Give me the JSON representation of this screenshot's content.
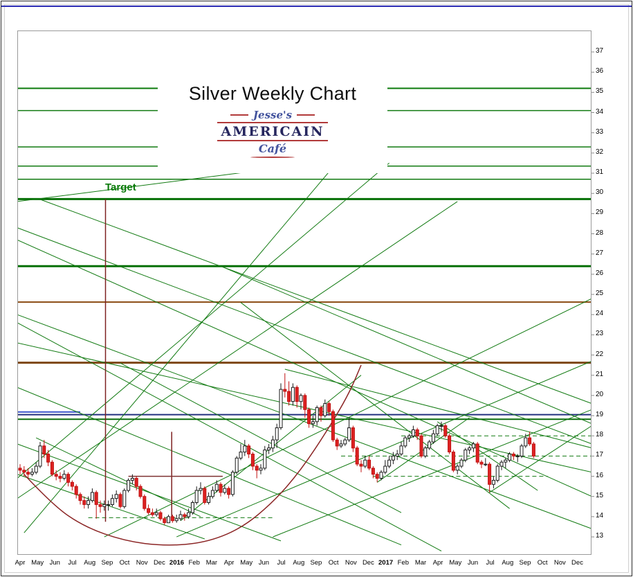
{
  "window": {
    "accent_color": "#2d2db4"
  },
  "logo": {
    "line1": "Jesse's",
    "line2": "AMERICAIN",
    "line3": "Café"
  },
  "annotations": {
    "target_label": "Target"
  },
  "chart_data": {
    "type": "candlestick",
    "title": "Silver Weekly Chart",
    "x_axis": {
      "unit": "weekly",
      "weeks_per_month": 4.34,
      "month_labels": [
        "Apr",
        "May",
        "Jun",
        "Jul",
        "Aug",
        "Sep",
        "Oct",
        "Nov",
        "Dec",
        "2016",
        "Feb",
        "Mar",
        "Apr",
        "May",
        "Jun",
        "Jul",
        "Aug",
        "Sep",
        "Oct",
        "Nov",
        "Dec",
        "2017",
        "Feb",
        "Mar",
        "Apr",
        "May",
        "Jun",
        "Jul",
        "Aug",
        "Sep",
        "Oct",
        "Nov",
        "Dec"
      ],
      "bold_labels": [
        "2016",
        "2017"
      ]
    },
    "y_axis": {
      "price_labels": [
        37,
        36,
        35,
        34,
        33,
        32,
        31,
        30,
        29,
        28,
        27,
        26,
        25,
        24,
        23,
        22,
        21,
        20,
        19,
        18,
        17,
        16,
        15,
        14,
        13
      ],
      "ylim": [
        12.1,
        38.1
      ]
    },
    "colors": {
      "up_fill": "#ffffff",
      "up_stroke": "#1a1a1a",
      "down_fill": "#dd2222",
      "down_stroke": "#c01010",
      "trend_green": "#117a11",
      "target_green": "#067006",
      "brown": "#7d4612",
      "navy": "#23307f",
      "maroon": "#8b2525"
    },
    "candles": [
      [
        16.4,
        16.6,
        16.1,
        16.3
      ],
      [
        16.3,
        16.5,
        16.0,
        16.2
      ],
      [
        16.2,
        16.4,
        15.9,
        16.1
      ],
      [
        16.1,
        16.4,
        16.0,
        16.2
      ],
      [
        16.2,
        16.7,
        16.1,
        16.5
      ],
      [
        16.5,
        17.7,
        16.4,
        17.5
      ],
      [
        17.5,
        17.8,
        16.9,
        17.1
      ],
      [
        17.1,
        17.3,
        16.5,
        16.7
      ],
      [
        16.7,
        16.8,
        16.0,
        16.1
      ],
      [
        16.1,
        16.3,
        15.8,
        16.0
      ],
      [
        16.0,
        16.2,
        15.7,
        15.9
      ],
      [
        15.9,
        16.3,
        15.8,
        16.1
      ],
      [
        16.1,
        16.2,
        15.5,
        15.7
      ],
      [
        15.7,
        15.8,
        15.3,
        15.5
      ],
      [
        15.5,
        15.6,
        14.9,
        15.1
      ],
      [
        15.1,
        15.2,
        14.6,
        14.8
      ],
      [
        14.8,
        15.0,
        14.4,
        14.6
      ],
      [
        14.6,
        15.0,
        14.4,
        14.8
      ],
      [
        14.8,
        15.4,
        14.7,
        15.2
      ],
      [
        15.2,
        15.3,
        13.9,
        14.6
      ],
      [
        14.6,
        14.8,
        14.2,
        14.5
      ],
      [
        14.5,
        14.8,
        14.3,
        14.6
      ],
      [
        14.6,
        14.8,
        14.3,
        14.6
      ],
      [
        14.6,
        15.1,
        14.5,
        14.9
      ],
      [
        14.9,
        15.3,
        14.7,
        15.1
      ],
      [
        15.1,
        15.2,
        14.4,
        14.5
      ],
      [
        14.5,
        15.4,
        14.4,
        15.3
      ],
      [
        15.3,
        15.9,
        15.2,
        15.8
      ],
      [
        15.8,
        16.1,
        15.6,
        15.9
      ],
      [
        15.9,
        16.0,
        15.3,
        15.5
      ],
      [
        15.5,
        15.6,
        14.9,
        15.0
      ],
      [
        15.0,
        15.1,
        14.3,
        14.4
      ],
      [
        14.4,
        14.6,
        14.1,
        14.2
      ],
      [
        14.2,
        14.4,
        14.0,
        14.1
      ],
      [
        14.1,
        14.4,
        14.0,
        14.2
      ],
      [
        14.2,
        14.3,
        13.8,
        13.9
      ],
      [
        13.9,
        14.0,
        13.6,
        13.7
      ],
      [
        13.7,
        14.1,
        13.7,
        14.0
      ],
      [
        14.0,
        14.1,
        13.7,
        13.8
      ],
      [
        13.8,
        14.1,
        13.7,
        13.9
      ],
      [
        13.9,
        14.3,
        13.8,
        14.1
      ],
      [
        14.1,
        14.2,
        13.8,
        14.0
      ],
      [
        14.0,
        14.4,
        13.9,
        14.2
      ],
      [
        14.2,
        14.8,
        14.1,
        14.7
      ],
      [
        14.7,
        15.5,
        14.6,
        15.3
      ],
      [
        15.3,
        15.7,
        15.1,
        15.4
      ],
      [
        15.4,
        15.5,
        14.6,
        14.7
      ],
      [
        14.7,
        15.2,
        14.6,
        15.0
      ],
      [
        15.0,
        15.5,
        14.9,
        15.3
      ],
      [
        15.3,
        15.8,
        15.2,
        15.6
      ],
      [
        15.6,
        15.7,
        15.0,
        15.2
      ],
      [
        15.2,
        15.6,
        15.1,
        15.4
      ],
      [
        15.4,
        15.5,
        14.9,
        15.1
      ],
      [
        15.1,
        16.3,
        15.0,
        16.2
      ],
      [
        16.2,
        17.0,
        16.1,
        16.9
      ],
      [
        16.9,
        17.6,
        16.8,
        17.2
      ],
      [
        17.2,
        17.8,
        17.0,
        17.5
      ],
      [
        17.5,
        17.6,
        16.9,
        17.1
      ],
      [
        17.1,
        17.2,
        16.3,
        16.5
      ],
      [
        16.5,
        16.6,
        15.9,
        16.3
      ],
      [
        16.3,
        16.6,
        16.1,
        16.4
      ],
      [
        16.4,
        17.5,
        16.3,
        17.3
      ],
      [
        17.3,
        17.6,
        17.1,
        17.4
      ],
      [
        17.4,
        18.0,
        17.2,
        17.8
      ],
      [
        17.8,
        18.6,
        17.4,
        18.4
      ],
      [
        18.4,
        20.6,
        18.3,
        20.3
      ],
      [
        20.3,
        21.1,
        19.9,
        20.2
      ],
      [
        20.2,
        20.7,
        19.5,
        19.7
      ],
      [
        19.7,
        20.6,
        19.5,
        20.4
      ],
      [
        20.4,
        20.5,
        19.4,
        19.7
      ],
      [
        19.7,
        20.1,
        19.3,
        20.0
      ],
      [
        20.0,
        20.1,
        18.9,
        19.3
      ],
      [
        19.3,
        19.4,
        18.4,
        18.6
      ],
      [
        18.6,
        19.0,
        18.4,
        18.7
      ],
      [
        18.7,
        19.5,
        18.5,
        19.4
      ],
      [
        19.4,
        19.5,
        18.7,
        19.0
      ],
      [
        19.0,
        19.8,
        18.9,
        19.6
      ],
      [
        19.6,
        19.7,
        19.0,
        19.2
      ],
      [
        19.2,
        19.3,
        17.7,
        17.8
      ],
      [
        17.8,
        17.9,
        17.3,
        17.5
      ],
      [
        17.5,
        17.8,
        17.4,
        17.6
      ],
      [
        17.6,
        17.9,
        17.5,
        17.8
      ],
      [
        17.8,
        18.9,
        17.7,
        18.4
      ],
      [
        18.4,
        18.5,
        17.2,
        17.4
      ],
      [
        17.4,
        17.5,
        16.5,
        16.6
      ],
      [
        16.6,
        16.8,
        16.2,
        16.5
      ],
      [
        16.5,
        17.0,
        16.4,
        16.8
      ],
      [
        16.8,
        17.0,
        16.3,
        16.4
      ],
      [
        16.4,
        16.5,
        15.9,
        16.1
      ],
      [
        16.1,
        16.2,
        15.7,
        15.9
      ],
      [
        15.9,
        16.3,
        15.8,
        16.2
      ],
      [
        16.2,
        16.8,
        16.1,
        16.5
      ],
      [
        16.5,
        17.0,
        16.4,
        16.8
      ],
      [
        16.8,
        17.2,
        16.6,
        17.0
      ],
      [
        17.0,
        17.3,
        16.8,
        17.1
      ],
      [
        17.1,
        17.7,
        17.0,
        17.5
      ],
      [
        17.5,
        18.0,
        17.4,
        17.9
      ],
      [
        17.9,
        18.1,
        17.7,
        18.0
      ],
      [
        18.0,
        18.5,
        17.9,
        18.3
      ],
      [
        18.3,
        18.4,
        17.8,
        18.0
      ],
      [
        18.0,
        18.1,
        16.9,
        17.0
      ],
      [
        17.0,
        17.5,
        16.9,
        17.4
      ],
      [
        17.4,
        17.8,
        17.3,
        17.7
      ],
      [
        17.7,
        18.3,
        17.6,
        18.1
      ],
      [
        18.1,
        18.6,
        18.0,
        18.5
      ],
      [
        18.5,
        18.7,
        18.2,
        18.5
      ],
      [
        18.5,
        18.6,
        17.9,
        18.0
      ],
      [
        18.0,
        18.1,
        17.1,
        17.2
      ],
      [
        17.2,
        17.3,
        16.2,
        16.3
      ],
      [
        16.3,
        16.6,
        16.1,
        16.5
      ],
      [
        16.5,
        16.9,
        16.4,
        16.8
      ],
      [
        16.8,
        17.4,
        16.7,
        17.3
      ],
      [
        17.3,
        17.5,
        17.1,
        17.4
      ],
      [
        17.4,
        17.7,
        17.2,
        17.6
      ],
      [
        17.6,
        17.7,
        16.6,
        16.7
      ],
      [
        16.7,
        16.8,
        16.4,
        16.6
      ],
      [
        16.6,
        16.9,
        16.5,
        16.6
      ],
      [
        16.6,
        16.7,
        15.2,
        15.6
      ],
      [
        15.6,
        16.0,
        15.4,
        15.8
      ],
      [
        15.8,
        16.6,
        15.7,
        16.5
      ],
      [
        16.5,
        16.8,
        16.3,
        16.7
      ],
      [
        16.7,
        16.9,
        16.4,
        16.8
      ],
      [
        16.8,
        17.2,
        16.7,
        17.1
      ],
      [
        17.1,
        17.2,
        16.8,
        17.0
      ],
      [
        17.0,
        17.1,
        16.7,
        17.0
      ],
      [
        17.0,
        17.6,
        16.9,
        17.5
      ],
      [
        17.5,
        18.1,
        17.4,
        17.9
      ],
      [
        17.9,
        18.2,
        17.5,
        17.6
      ],
      [
        17.6,
        17.7,
        16.9,
        17.0
      ]
    ],
    "lines": [
      {
        "x": -0.7,
        "p": 35.2,
        "x2": 142.5,
        "c": "#0b7a0b",
        "w": 2
      },
      {
        "x": -0.7,
        "p": 34.1,
        "x2": 142.5,
        "w": 1.5
      },
      {
        "x": -0.7,
        "p": 32.3,
        "x2": 142.5,
        "w": 1.5
      },
      {
        "x": -0.7,
        "p": 31.35,
        "x2": 142.5,
        "w": 1.5
      },
      {
        "x": -0.7,
        "p": 30.7,
        "x2": 142.5,
        "w": 1.5
      },
      {
        "x": -0.7,
        "p": 29.72,
        "x2": 142.5,
        "c": "#067006",
        "w": 3
      },
      {
        "x": -0.7,
        "p": 26.4,
        "x2": 142.5,
        "c": "#067006",
        "w": 3
      },
      {
        "x": -0.7,
        "p": 24.62,
        "x2": 142.5,
        "c": "#8a4a10",
        "w": 2
      },
      {
        "x": -0.7,
        "p": 21.62,
        "x2": 142.5,
        "c": "#7d4612",
        "w": 3
      },
      {
        "x": -0.7,
        "p": 19.05,
        "x2": 142.5,
        "c": "#23307f",
        "w": 2
      },
      {
        "x": -0.7,
        "p": 19.18,
        "x2": 15,
        "c": "#3c55cc",
        "w": 2
      },
      {
        "x": -0.7,
        "p": 18.82,
        "x2": 142.5,
        "c": "#0b6b0b",
        "w": 2
      },
      {
        "x": 17,
        "p": 13.95,
        "x2": 63,
        "dash": 1
      },
      {
        "x": 88,
        "p": 16.0,
        "x2": 131.5,
        "dash": 1
      },
      {
        "x": 80,
        "p": 17.0,
        "x2": 142.5,
        "dash": 1
      },
      {
        "x": 95,
        "p": 18.0,
        "x2": 142.5,
        "dash": 1
      },
      {
        "x": -0.7,
        "p": 28.3,
        "x2": 142.5,
        "p2": 17.6
      },
      {
        "x": -0.7,
        "p": 27.7,
        "x2": 142.5,
        "p2": 15.0
      },
      {
        "x": -0.7,
        "p": 24.0,
        "x2": 142.5,
        "p2": 13.4
      },
      {
        "x": -0.7,
        "p": 23.6,
        "x2": 105,
        "p2": 12.3
      },
      {
        "x": -0.7,
        "p": 20.4,
        "x2": 95,
        "p2": 12.6
      },
      {
        "x": -0.7,
        "p": 17.6,
        "x2": 65,
        "p2": 12.8
      },
      {
        "x": -0.7,
        "p": 16.1,
        "x2": 46,
        "p2": 12.9
      },
      {
        "x": 5,
        "p": 29.7,
        "x2": 142.5,
        "p2": 19.6
      },
      {
        "x": 50,
        "p": 26.4,
        "x2": 142.5,
        "p2": 18.6
      },
      {
        "x": -0.7,
        "p": 22.6,
        "x2": 142.5,
        "p2": 16.2
      },
      {
        "x": 66,
        "p": 21.3,
        "x2": 142.5,
        "p2": 17.4
      },
      {
        "x": 104,
        "p": 18.7,
        "x2": 129,
        "p2": 15.3
      },
      {
        "x": 4,
        "p": 17.9,
        "x2": 45,
        "p2": 14.0
      },
      {
        "x": 25,
        "p": 21.6,
        "x2": 95,
        "p2": 14.2
      },
      {
        "x": 55,
        "p": 24.6,
        "x2": 122,
        "p2": 14.4
      },
      {
        "x": 40,
        "p": 13.8,
        "x2": 85,
        "p2": 21.0
      },
      {
        "x": 89,
        "p": 15.7,
        "x2": 112,
        "p2": 18.9
      },
      {
        "x": 117,
        "p": 15.2,
        "x2": 142.5,
        "p2": 18.5
      },
      {
        "x": 1,
        "p": 13.2,
        "x2": 78,
        "p2": 31.3
      },
      {
        "x": -0.7,
        "p": 15.9,
        "x2": 92,
        "p2": 31.5
      },
      {
        "x": -0.7,
        "p": 14.9,
        "x2": 109,
        "p2": 29.6
      },
      {
        "x": 21,
        "p": 13.0,
        "x2": 142.5,
        "p2": 24.8
      },
      {
        "x": 39,
        "p": 13.0,
        "x2": 142.5,
        "p2": 21.7
      },
      {
        "x": 63,
        "p": 13.0,
        "x2": 142.5,
        "p2": 19.3
      },
      {
        "x": -0.7,
        "p": 29.6,
        "x2": 74,
        "p2": 31.5
      },
      {
        "x": 21.3,
        "p": 29.72,
        "x2": 21.3,
        "p2": 13.75,
        "c": "#7d2020",
        "w": 1.5
      },
      {
        "x": 37.8,
        "p": 18.2,
        "x2": 37.8,
        "p2": 13.95,
        "c": "#7d2020",
        "w": 1.5
      },
      {
        "x": 27,
        "p": 16.0,
        "x2": 50.5,
        "c": "#7d3030",
        "w": 1.5
      }
    ],
    "curve": {
      "points": [
        [
          1,
          16.1
        ],
        [
          8,
          14.6
        ],
        [
          16,
          13.5
        ],
        [
          26,
          12.8
        ],
        [
          36,
          12.55
        ],
        [
          46,
          12.7
        ],
        [
          55,
          13.4
        ],
        [
          63,
          14.7
        ],
        [
          70,
          16.3
        ],
        [
          77,
          18.4
        ],
        [
          82,
          20.1
        ],
        [
          85,
          21.5
        ]
      ],
      "color": "#8b2525",
      "width": 1.5
    }
  }
}
